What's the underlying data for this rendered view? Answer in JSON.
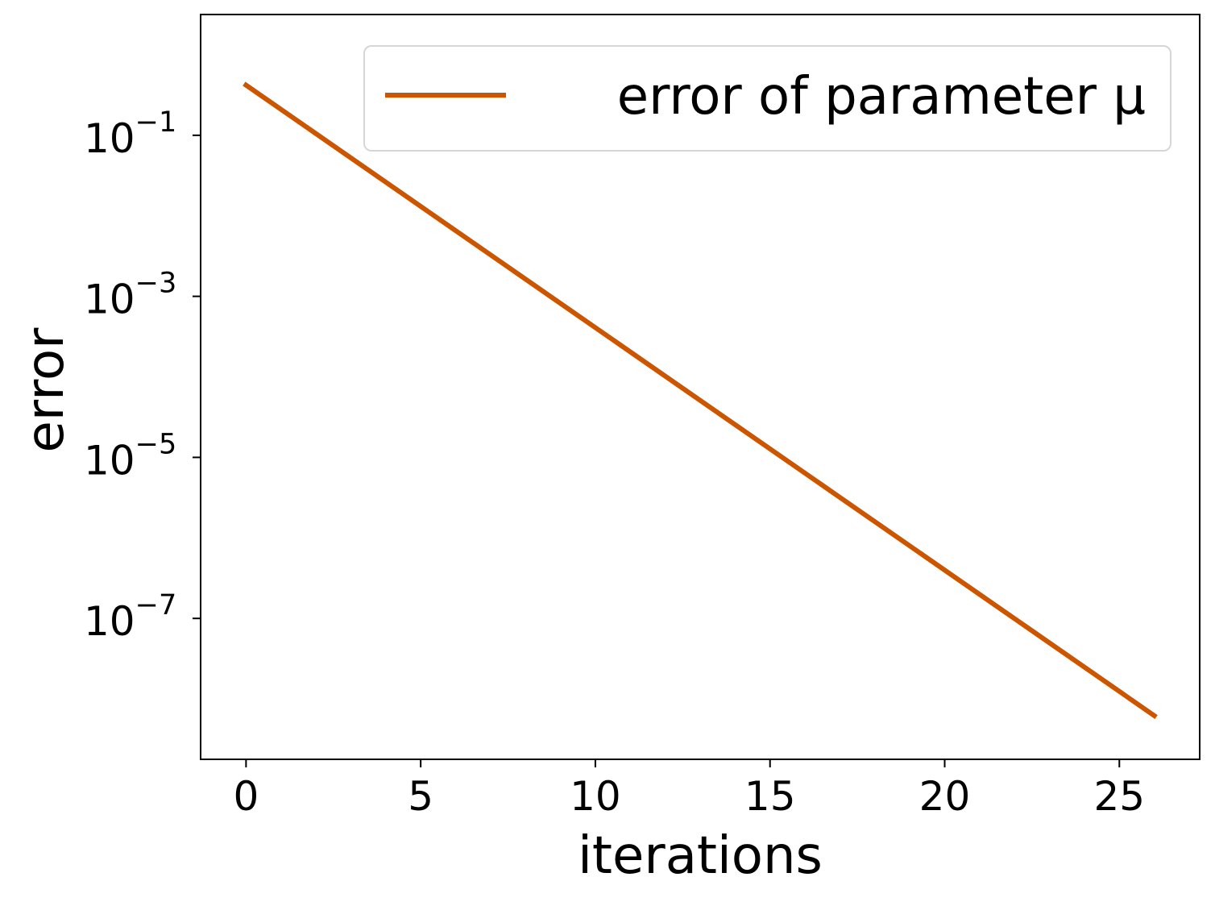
{
  "chart_data": {
    "type": "line",
    "title": "",
    "xlabel": "iterations",
    "ylabel": "error",
    "yscale": "log",
    "xlim": [
      -1.3,
      27.3
    ],
    "ylim_log10": [
      -8.75,
      0.5
    ],
    "xticks": [
      0,
      5,
      10,
      15,
      20,
      25
    ],
    "yticks": [
      {
        "base": "10",
        "exp": "−1",
        "value_log10": -1
      },
      {
        "base": "10",
        "exp": "−3",
        "value_log10": -3
      },
      {
        "base": "10",
        "exp": "−5",
        "value_log10": -5
      },
      {
        "base": "10",
        "exp": "−7",
        "value_log10": -7
      }
    ],
    "grid": false,
    "legend_position": "top-right",
    "series": [
      {
        "name": "error of parameter μ",
        "color": "#cc5500",
        "x": [
          0,
          26
        ],
        "y": [
          0.42,
          6.2e-09
        ]
      }
    ]
  }
}
